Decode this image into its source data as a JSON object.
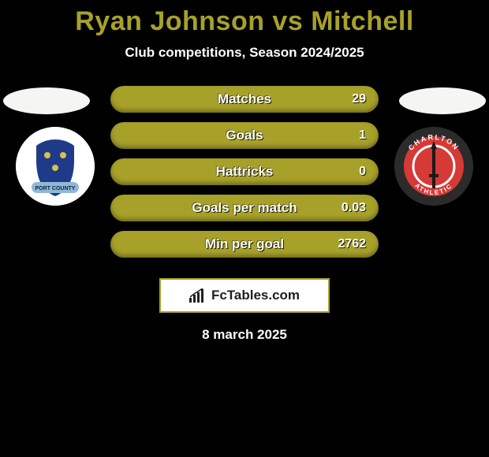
{
  "title": {
    "text": "Ryan Johnson vs Mitchell",
    "color": "#a7a12a",
    "font_size": 34
  },
  "subtitle": {
    "text": "Club competitions, Season 2024/2025",
    "color": "#ffffff",
    "font_size": 17
  },
  "background_color": "#000000",
  "left_player": {
    "head_color": "#f5f5f3",
    "crest_bg": "#ffffff",
    "crest_label": "PORT COUNTY",
    "crest_label_bg": "#8fb8d8",
    "crest_shield": "#203a8a",
    "crest_accent": "#d6c24a"
  },
  "right_player": {
    "head_color": "#f5f5f3",
    "crest_bg": "#2b2b2b",
    "crest_ring": "#d63a36",
    "crest_inner": "#ffffff",
    "crest_sword": "#1a1a1a",
    "crest_label_top": "CHARLTON",
    "crest_label_bottom": "ATHLETIC",
    "crest_text_color": "#ffffff"
  },
  "bars": {
    "fill_color": "#a7a12a",
    "height": 34,
    "radius": 18,
    "gap": 12,
    "label_font_size": 17,
    "value_font_size": 16,
    "items": [
      {
        "label": "Matches",
        "value": "29"
      },
      {
        "label": "Goals",
        "value": "1"
      },
      {
        "label": "Hattricks",
        "value": "0"
      },
      {
        "label": "Goals per match",
        "value": "0.03"
      },
      {
        "label": "Min per goal",
        "value": "2762"
      }
    ]
  },
  "footer": {
    "brand": "FcTables.com",
    "box_border": "#a7a12a",
    "box_bg": "#ffffff",
    "text_color": "#202020",
    "date": "8 march 2025"
  }
}
